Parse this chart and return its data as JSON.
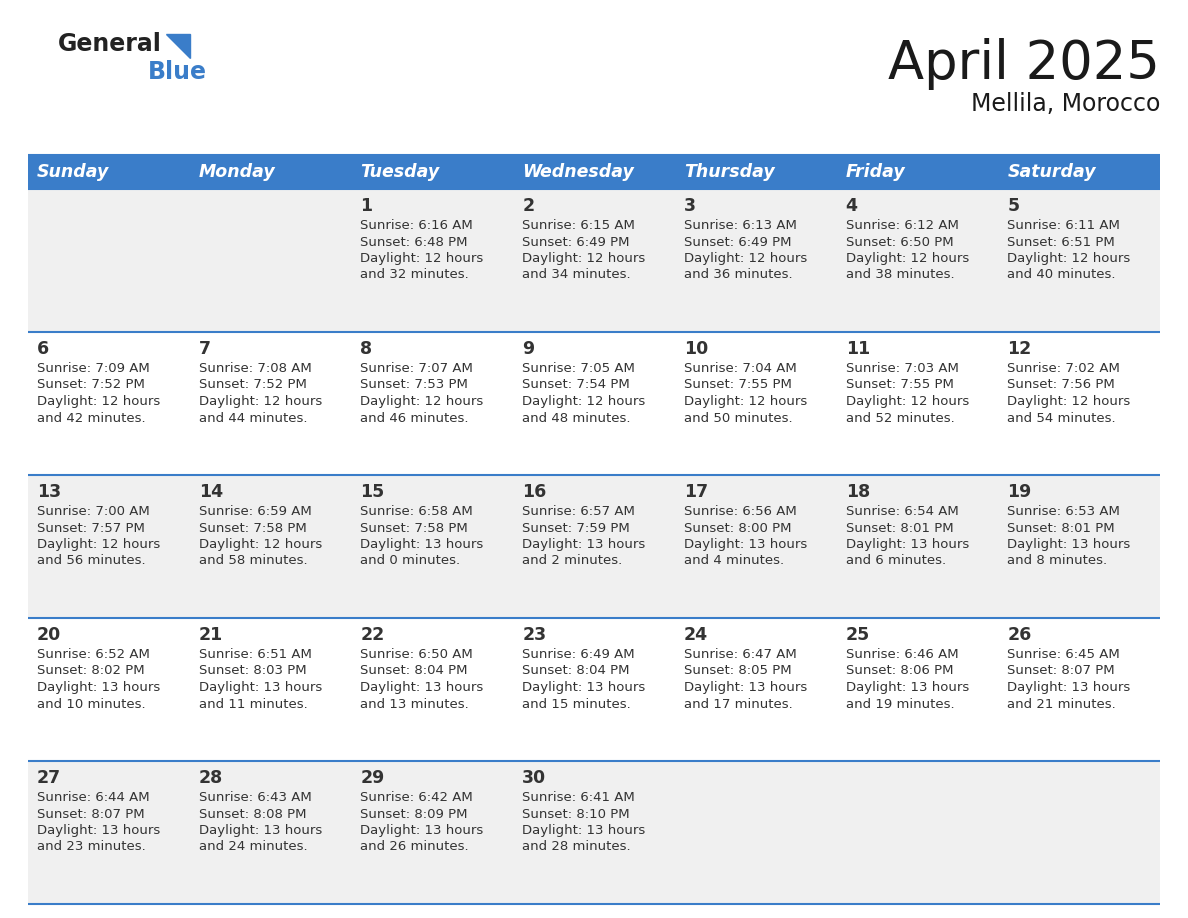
{
  "title": "April 2025",
  "subtitle": "Mellila, Morocco",
  "header_bg": "#3A7DC9",
  "header_text_color": "#FFFFFF",
  "cell_bg_odd": "#F0F0F0",
  "cell_bg_even": "#FFFFFF",
  "border_color": "#3A7DC9",
  "day_names": [
    "Sunday",
    "Monday",
    "Tuesday",
    "Wednesday",
    "Thursday",
    "Friday",
    "Saturday"
  ],
  "title_color": "#1a1a1a",
  "subtitle_color": "#1a1a1a",
  "number_color": "#333333",
  "text_color": "#333333",
  "days": [
    {
      "day": 1,
      "col": 2,
      "row": 0,
      "sunrise": "6:16 AM",
      "sunset": "6:48 PM",
      "daylight": "12 hours and 32 minutes."
    },
    {
      "day": 2,
      "col": 3,
      "row": 0,
      "sunrise": "6:15 AM",
      "sunset": "6:49 PM",
      "daylight": "12 hours and 34 minutes."
    },
    {
      "day": 3,
      "col": 4,
      "row": 0,
      "sunrise": "6:13 AM",
      "sunset": "6:49 PM",
      "daylight": "12 hours and 36 minutes."
    },
    {
      "day": 4,
      "col": 5,
      "row": 0,
      "sunrise": "6:12 AM",
      "sunset": "6:50 PM",
      "daylight": "12 hours and 38 minutes."
    },
    {
      "day": 5,
      "col": 6,
      "row": 0,
      "sunrise": "6:11 AM",
      "sunset": "6:51 PM",
      "daylight": "12 hours and 40 minutes."
    },
    {
      "day": 6,
      "col": 0,
      "row": 1,
      "sunrise": "7:09 AM",
      "sunset": "7:52 PM",
      "daylight": "12 hours and 42 minutes."
    },
    {
      "day": 7,
      "col": 1,
      "row": 1,
      "sunrise": "7:08 AM",
      "sunset": "7:52 PM",
      "daylight": "12 hours and 44 minutes."
    },
    {
      "day": 8,
      "col": 2,
      "row": 1,
      "sunrise": "7:07 AM",
      "sunset": "7:53 PM",
      "daylight": "12 hours and 46 minutes."
    },
    {
      "day": 9,
      "col": 3,
      "row": 1,
      "sunrise": "7:05 AM",
      "sunset": "7:54 PM",
      "daylight": "12 hours and 48 minutes."
    },
    {
      "day": 10,
      "col": 4,
      "row": 1,
      "sunrise": "7:04 AM",
      "sunset": "7:55 PM",
      "daylight": "12 hours and 50 minutes."
    },
    {
      "day": 11,
      "col": 5,
      "row": 1,
      "sunrise": "7:03 AM",
      "sunset": "7:55 PM",
      "daylight": "12 hours and 52 minutes."
    },
    {
      "day": 12,
      "col": 6,
      "row": 1,
      "sunrise": "7:02 AM",
      "sunset": "7:56 PM",
      "daylight": "12 hours and 54 minutes."
    },
    {
      "day": 13,
      "col": 0,
      "row": 2,
      "sunrise": "7:00 AM",
      "sunset": "7:57 PM",
      "daylight": "12 hours and 56 minutes."
    },
    {
      "day": 14,
      "col": 1,
      "row": 2,
      "sunrise": "6:59 AM",
      "sunset": "7:58 PM",
      "daylight": "12 hours and 58 minutes."
    },
    {
      "day": 15,
      "col": 2,
      "row": 2,
      "sunrise": "6:58 AM",
      "sunset": "7:58 PM",
      "daylight": "13 hours and 0 minutes."
    },
    {
      "day": 16,
      "col": 3,
      "row": 2,
      "sunrise": "6:57 AM",
      "sunset": "7:59 PM",
      "daylight": "13 hours and 2 minutes."
    },
    {
      "day": 17,
      "col": 4,
      "row": 2,
      "sunrise": "6:56 AM",
      "sunset": "8:00 PM",
      "daylight": "13 hours and 4 minutes."
    },
    {
      "day": 18,
      "col": 5,
      "row": 2,
      "sunrise": "6:54 AM",
      "sunset": "8:01 PM",
      "daylight": "13 hours and 6 minutes."
    },
    {
      "day": 19,
      "col": 6,
      "row": 2,
      "sunrise": "6:53 AM",
      "sunset": "8:01 PM",
      "daylight": "13 hours and 8 minutes."
    },
    {
      "day": 20,
      "col": 0,
      "row": 3,
      "sunrise": "6:52 AM",
      "sunset": "8:02 PM",
      "daylight": "13 hours and 10 minutes."
    },
    {
      "day": 21,
      "col": 1,
      "row": 3,
      "sunrise": "6:51 AM",
      "sunset": "8:03 PM",
      "daylight": "13 hours and 11 minutes."
    },
    {
      "day": 22,
      "col": 2,
      "row": 3,
      "sunrise": "6:50 AM",
      "sunset": "8:04 PM",
      "daylight": "13 hours and 13 minutes."
    },
    {
      "day": 23,
      "col": 3,
      "row": 3,
      "sunrise": "6:49 AM",
      "sunset": "8:04 PM",
      "daylight": "13 hours and 15 minutes."
    },
    {
      "day": 24,
      "col": 4,
      "row": 3,
      "sunrise": "6:47 AM",
      "sunset": "8:05 PM",
      "daylight": "13 hours and 17 minutes."
    },
    {
      "day": 25,
      "col": 5,
      "row": 3,
      "sunrise": "6:46 AM",
      "sunset": "8:06 PM",
      "daylight": "13 hours and 19 minutes."
    },
    {
      "day": 26,
      "col": 6,
      "row": 3,
      "sunrise": "6:45 AM",
      "sunset": "8:07 PM",
      "daylight": "13 hours and 21 minutes."
    },
    {
      "day": 27,
      "col": 0,
      "row": 4,
      "sunrise": "6:44 AM",
      "sunset": "8:07 PM",
      "daylight": "13 hours and 23 minutes."
    },
    {
      "day": 28,
      "col": 1,
      "row": 4,
      "sunrise": "6:43 AM",
      "sunset": "8:08 PM",
      "daylight": "13 hours and 24 minutes."
    },
    {
      "day": 29,
      "col": 2,
      "row": 4,
      "sunrise": "6:42 AM",
      "sunset": "8:09 PM",
      "daylight": "13 hours and 26 minutes."
    },
    {
      "day": 30,
      "col": 3,
      "row": 4,
      "sunrise": "6:41 AM",
      "sunset": "8:10 PM",
      "daylight": "13 hours and 28 minutes."
    }
  ]
}
